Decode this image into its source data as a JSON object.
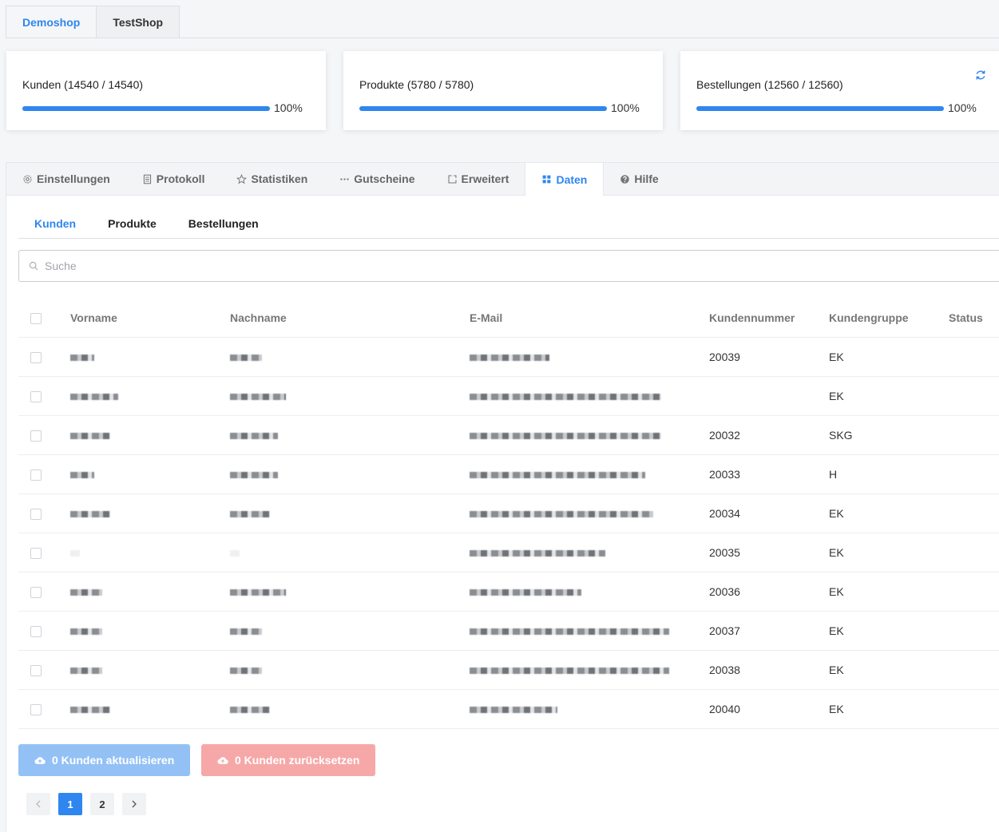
{
  "shop_tabs": [
    {
      "label": "Demoshop",
      "active": true
    },
    {
      "label": "TestShop",
      "active": false
    }
  ],
  "stats": [
    {
      "label": "Kunden (14540 / 14540)",
      "progress_percent": 100,
      "percent_text": "100%"
    },
    {
      "label": "Produkte (5780 / 5780)",
      "progress_percent": 100,
      "percent_text": "100%"
    },
    {
      "label": "Bestellungen (12560 / 12560)",
      "progress_percent": 100,
      "percent_text": "100%"
    }
  ],
  "refresh_icon": "refresh-icon",
  "main_tabs": [
    {
      "label": "Einstellungen",
      "icon": "gear-icon"
    },
    {
      "label": "Protokoll",
      "icon": "document-icon"
    },
    {
      "label": "Statistiken",
      "icon": "star-icon"
    },
    {
      "label": "Gutscheine",
      "icon": "dots-icon"
    },
    {
      "label": "Erweitert",
      "icon": "external-icon"
    },
    {
      "label": "Daten",
      "icon": "grid-icon",
      "active": true
    },
    {
      "label": "Hilfe",
      "icon": "help-icon"
    }
  ],
  "sub_tabs": [
    {
      "label": "Kunden",
      "active": true
    },
    {
      "label": "Produkte"
    },
    {
      "label": "Bestellungen"
    }
  ],
  "search": {
    "placeholder": "Suche"
  },
  "table": {
    "columns": [
      "Vorname",
      "Nachname",
      "E-Mail",
      "Kundennummer",
      "Kundengruppe",
      "Status"
    ],
    "rows": [
      {
        "customer_number": "20039",
        "group": "EK"
      },
      {
        "customer_number": "",
        "group": "EK"
      },
      {
        "customer_number": "20032",
        "group": "SKG"
      },
      {
        "customer_number": "20033",
        "group": "H"
      },
      {
        "customer_number": "20034",
        "group": "EK"
      },
      {
        "customer_number": "20035",
        "group": "EK"
      },
      {
        "customer_number": "20036",
        "group": "EK"
      },
      {
        "customer_number": "20037",
        "group": "EK"
      },
      {
        "customer_number": "20038",
        "group": "EK"
      },
      {
        "customer_number": "20040",
        "group": "EK"
      }
    ]
  },
  "actions": {
    "update_label": "0 Kunden aktualisieren",
    "reset_label": "0 Kunden zurücksetzen"
  },
  "pagination": {
    "pages": [
      "1",
      "2"
    ],
    "current": "1"
  },
  "colors": {
    "accent": "#2f86ef",
    "update_button": "#93c1f6",
    "reset_button": "#f6a8a8"
  }
}
